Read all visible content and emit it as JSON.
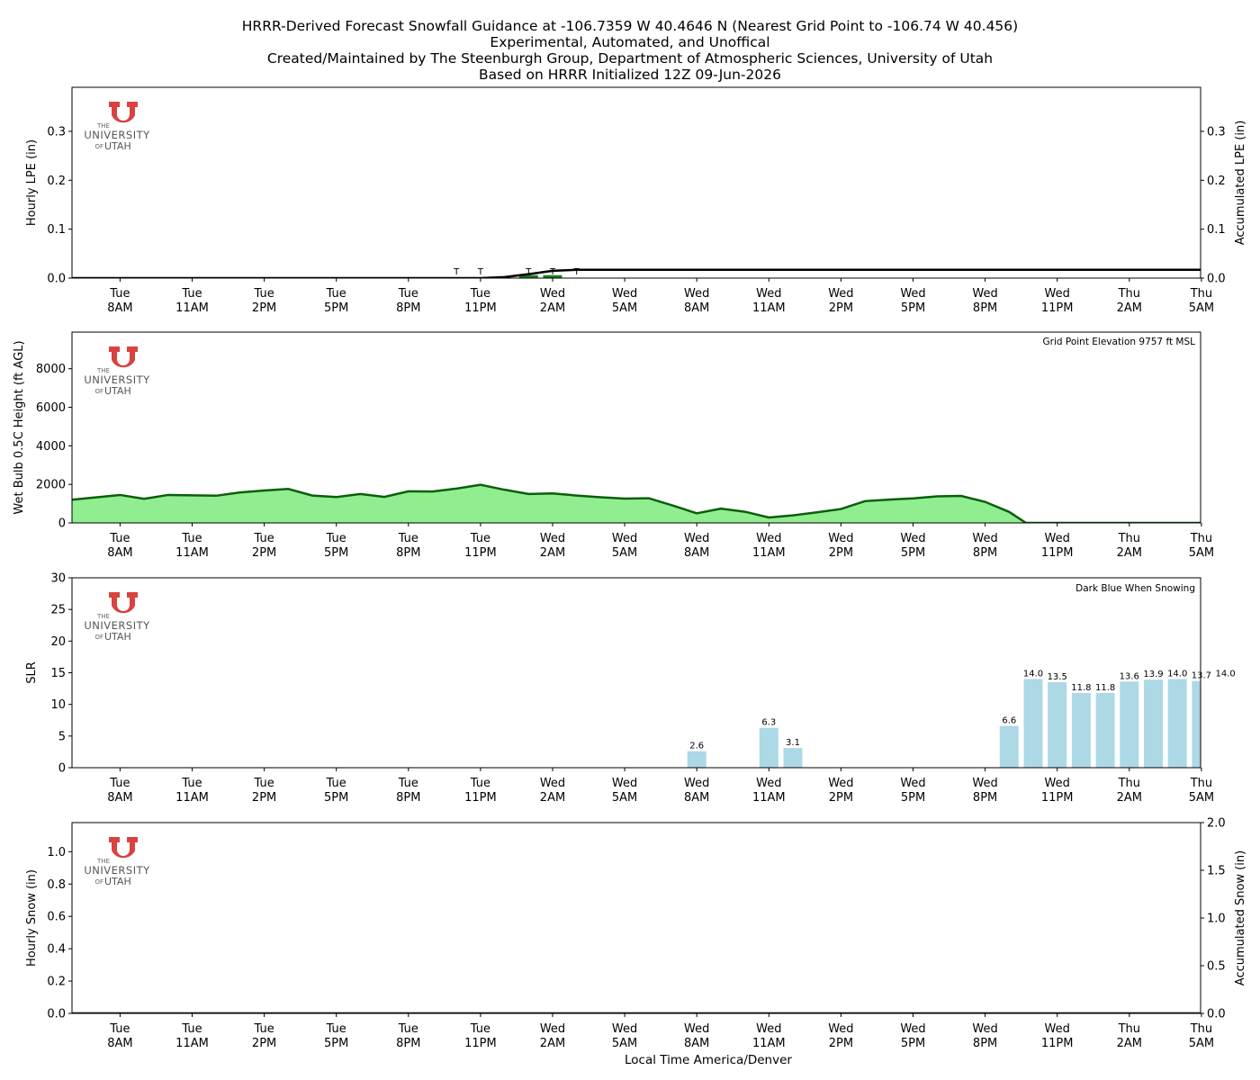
{
  "header": {
    "line1": "HRRR-Derived Forecast Snowfall Guidance at -106.7359 W 40.4646 N (Nearest Grid Point to -106.74 W 40.456)",
    "line2": "Experimental, Automated, and Unoffical",
    "line3": "Created/Maintained by The Steenburgh Group, Department of Atmospheric Sciences, University of Utah",
    "line4": "Based on HRRR Initialized 12Z 09-Jun-2026"
  },
  "logo": {
    "the": "THE",
    "university": "UNIVERSITY",
    "of": "OF",
    "utah": "UTAH",
    "color": "#d9423f"
  },
  "time_axis": {
    "ticks": [
      {
        "hour": 1,
        "day": "Tue",
        "time": "8AM"
      },
      {
        "hour": 4,
        "day": "Tue",
        "time": "11AM"
      },
      {
        "hour": 7,
        "day": "Tue",
        "time": "2PM"
      },
      {
        "hour": 10,
        "day": "Tue",
        "time": "5PM"
      },
      {
        "hour": 13,
        "day": "Tue",
        "time": "8PM"
      },
      {
        "hour": 16,
        "day": "Tue",
        "time": "11PM"
      },
      {
        "hour": 19,
        "day": "Wed",
        "time": "2AM"
      },
      {
        "hour": 22,
        "day": "Wed",
        "time": "5AM"
      },
      {
        "hour": 25,
        "day": "Wed",
        "time": "8AM"
      },
      {
        "hour": 28,
        "day": "Wed",
        "time": "11AM"
      },
      {
        "hour": 31,
        "day": "Wed",
        "time": "2PM"
      },
      {
        "hour": 34,
        "day": "Wed",
        "time": "5PM"
      },
      {
        "hour": 37,
        "day": "Wed",
        "time": "8PM"
      },
      {
        "hour": 40,
        "day": "Wed",
        "time": "11PM"
      },
      {
        "hour": 43,
        "day": "Thu",
        "time": "2AM"
      },
      {
        "hour": 46,
        "day": "Thu",
        "time": "5AM"
      }
    ],
    "xlabel": "Local Time America/Denver"
  },
  "chart_data": [
    {
      "type": "bar",
      "panel": "lpe",
      "ylabel": "Hourly LPE (in)",
      "ylabel_right": "Accumulated LPE (in)",
      "ylim": [
        0,
        0.39
      ],
      "yticks": [
        0.0,
        0.1,
        0.2,
        0.3
      ],
      "ytick_labels": [
        "0.0",
        "0.1",
        "0.2",
        "0.3"
      ],
      "bar_color": "#1a7f1a",
      "hourly": [
        {
          "hour": 18,
          "value": 0.006
        },
        {
          "hour": 19,
          "value": 0.006
        }
      ],
      "trace_label": "T",
      "trace_hours": [
        15,
        16,
        18,
        19,
        20
      ],
      "accumulated": {
        "hours": [
          0,
          16,
          17,
          18,
          19,
          20,
          47
        ],
        "values": [
          0.0,
          0.0,
          0.002,
          0.008,
          0.015,
          0.017,
          0.017
        ]
      }
    },
    {
      "type": "area",
      "panel": "wetbulb",
      "ylabel": "Wet Bulb 0.5C Height (ft AGL)",
      "annotation": "Grid Point Elevation 9757 ft MSL",
      "ylim": [
        0,
        9900
      ],
      "yticks": [
        0,
        2000,
        4000,
        6000,
        8000
      ],
      "ytick_labels": [
        "0",
        "2000",
        "4000",
        "6000",
        "8000"
      ],
      "fill_color": "#90ee90",
      "line_color": "#0b5e0b",
      "x": [
        0,
        1,
        2,
        3,
        4,
        5,
        6,
        7,
        8,
        9,
        10,
        11,
        12,
        13,
        14,
        15,
        16,
        17,
        18,
        19,
        20,
        21,
        22,
        23,
        24,
        25,
        26,
        27,
        28,
        29,
        30,
        31,
        32,
        33,
        34,
        35,
        36,
        37,
        38,
        38.7,
        39,
        40,
        47
      ],
      "values": [
        1200,
        1450,
        1250,
        1450,
        1430,
        1410,
        1580,
        1680,
        1760,
        1420,
        1340,
        1500,
        1350,
        1640,
        1630,
        1780,
        1980,
        1720,
        1500,
        1530,
        1420,
        1330,
        1260,
        1280,
        900,
        500,
        740,
        580,
        280,
        390,
        550,
        720,
        1130,
        1210,
        1270,
        1380,
        1400,
        1090,
        570,
        0,
        0,
        0,
        0
      ]
    },
    {
      "type": "bar",
      "panel": "slr",
      "ylabel": "SLR",
      "annotation": "Dark Blue When Snowing",
      "ylim": [
        0,
        30
      ],
      "yticks": [
        0,
        5,
        10,
        15,
        20,
        25,
        30
      ],
      "ytick_labels": [
        "0",
        "5",
        "10",
        "15",
        "20",
        "25",
        "30"
      ],
      "bar_color": "#add8e6",
      "bars": [
        {
          "hour": 25,
          "value": 2.6,
          "label": "2.6"
        },
        {
          "hour": 28,
          "value": 6.3,
          "label": "6.3"
        },
        {
          "hour": 29,
          "value": 3.1,
          "label": "3.1"
        },
        {
          "hour": 38,
          "value": 6.6,
          "label": "6.6"
        },
        {
          "hour": 39,
          "value": 14.0,
          "label": "14.0"
        },
        {
          "hour": 40,
          "value": 13.5,
          "label": "13.5"
        },
        {
          "hour": 41,
          "value": 11.8,
          "label": "11.8"
        },
        {
          "hour": 42,
          "value": 11.8,
          "label": "11.8"
        },
        {
          "hour": 43,
          "value": 13.6,
          "label": "13.6"
        },
        {
          "hour": 44,
          "value": 13.9,
          "label": "13.9"
        },
        {
          "hour": 45,
          "value": 14.0,
          "label": "14.0"
        },
        {
          "hour": 46,
          "value": 13.7,
          "label": "13.7"
        },
        {
          "hour": 47,
          "value": 14.0,
          "label": "14.0"
        }
      ]
    },
    {
      "type": "bar",
      "panel": "snow",
      "ylabel": "Hourly Snow (in)",
      "ylabel_right": "Accumulated Snow (in)",
      "ylim": [
        0,
        1.18
      ],
      "yticks": [
        0.0,
        0.2,
        0.4,
        0.6,
        0.8,
        1.0
      ],
      "ytick_labels": [
        "0.0",
        "0.2",
        "0.4",
        "0.6",
        "0.8",
        "1.0"
      ],
      "ylim_right": [
        0,
        2.0
      ],
      "yticks_right": [
        0.0,
        0.5,
        1.0,
        1.5,
        2.0
      ],
      "ytick_labels_right": [
        "0.0",
        "0.5",
        "1.0",
        "1.5",
        "2.0"
      ],
      "hourly": [],
      "accumulated": {
        "hours": [
          0,
          47
        ],
        "values": [
          0.0,
          0.0
        ]
      }
    }
  ]
}
